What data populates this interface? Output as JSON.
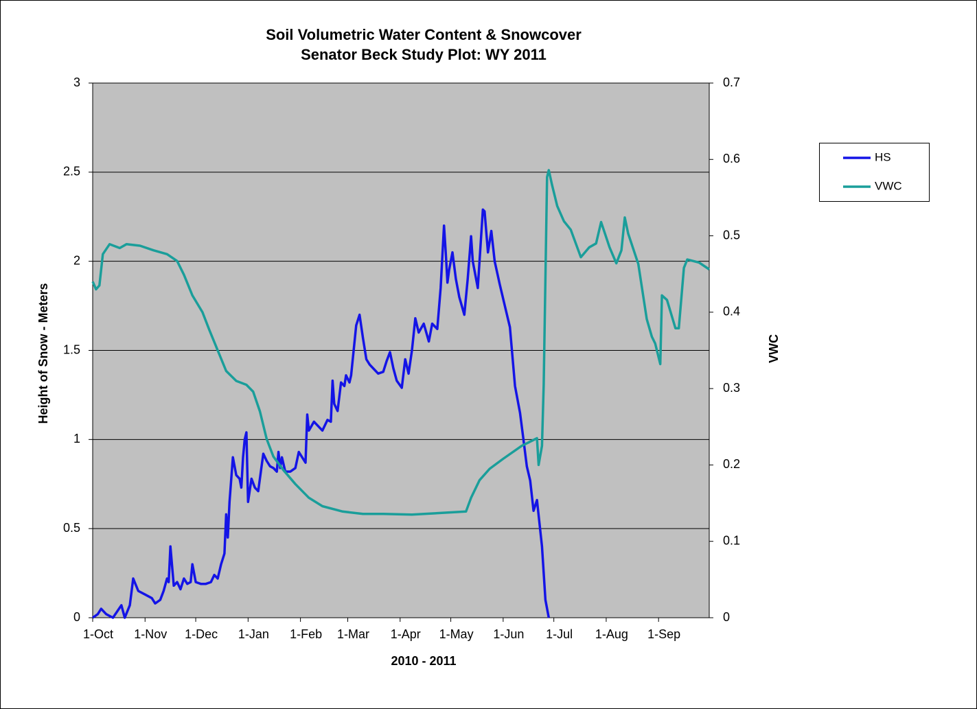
{
  "chart_data": {
    "type": "line",
    "title": "Soil Volumetric Water Content & Snowcover",
    "subtitle": "Senator Beck Study Plot: WY 2011",
    "x_label": "2010 - 2011",
    "y_label": "Height of Snow - Meters",
    "y2_label": "VWC",
    "xlim": [
      0,
      365
    ],
    "xticks": [
      {
        "value": 0,
        "label": "1-Oct"
      },
      {
        "value": 31,
        "label": "1-Nov"
      },
      {
        "value": 61,
        "label": "1-Dec"
      },
      {
        "value": 92,
        "label": "1-Jan"
      },
      {
        "value": 123,
        "label": "1-Feb"
      },
      {
        "value": 151,
        "label": "1-Mar"
      },
      {
        "value": 182,
        "label": "1-Apr"
      },
      {
        "value": 212,
        "label": "1-May"
      },
      {
        "value": 243,
        "label": "1-Jun"
      },
      {
        "value": 273,
        "label": "1-Jul"
      },
      {
        "value": 304,
        "label": "1-Aug"
      },
      {
        "value": 335,
        "label": "1-Sep"
      }
    ],
    "ylim": [
      0,
      3
    ],
    "yticks": [
      0,
      0.5,
      1,
      1.5,
      2,
      2.5,
      3
    ],
    "y2lim": [
      0,
      0.7
    ],
    "y2ticks": [
      0,
      0.1,
      0.2,
      0.3,
      0.4,
      0.5,
      0.6,
      0.7
    ],
    "grid": true,
    "legend": "right",
    "series": [
      {
        "name": "HS",
        "color": "#1414e6",
        "axis": "y",
        "x": [
          0,
          3,
          5,
          8,
          12,
          17,
          19,
          22,
          24,
          27,
          31,
          35,
          37,
          40,
          42,
          44,
          45,
          46,
          48,
          50,
          52,
          54,
          56,
          58,
          59,
          61,
          64,
          67,
          70,
          72,
          74,
          76,
          78,
          79,
          80,
          81,
          83,
          85,
          87,
          88,
          89,
          90,
          91,
          92,
          94,
          96,
          98,
          100,
          101,
          103,
          105,
          107,
          109,
          110,
          111,
          112,
          114,
          117,
          120,
          122,
          124,
          126,
          127,
          128,
          131,
          134,
          136,
          139,
          141,
          142,
          143,
          145,
          147,
          149,
          150,
          152,
          153,
          156,
          158,
          160,
          162,
          164,
          166,
          169,
          172,
          174,
          176,
          178,
          180,
          183,
          185,
          187,
          189,
          191,
          193,
          196,
          199,
          201,
          204,
          206,
          208,
          209,
          210,
          211,
          213,
          215,
          217,
          220,
          222,
          224,
          225,
          228,
          231,
          232,
          234,
          236,
          238,
          241,
          244,
          247,
          250,
          253,
          255,
          257,
          259,
          261,
          263,
          266,
          268,
          270
        ],
        "values": [
          0,
          0.02,
          0.05,
          0.02,
          0,
          0.07,
          0,
          0.07,
          0.22,
          0.15,
          0.13,
          0.11,
          0.08,
          0.1,
          0.15,
          0.22,
          0.2,
          0.4,
          0.18,
          0.2,
          0.16,
          0.22,
          0.19,
          0.2,
          0.3,
          0.2,
          0.19,
          0.19,
          0.2,
          0.24,
          0.22,
          0.3,
          0.36,
          0.58,
          0.45,
          0.65,
          0.9,
          0.8,
          0.78,
          0.73,
          0.9,
          1.0,
          1.04,
          0.65,
          0.78,
          0.73,
          0.71,
          0.85,
          0.92,
          0.88,
          0.85,
          0.84,
          0.82,
          0.93,
          0.84,
          0.9,
          0.82,
          0.82,
          0.84,
          0.93,
          0.9,
          0.87,
          1.14,
          1.05,
          1.1,
          1.07,
          1.05,
          1.11,
          1.1,
          1.33,
          1.2,
          1.16,
          1.32,
          1.3,
          1.36,
          1.32,
          1.36,
          1.64,
          1.7,
          1.57,
          1.45,
          1.42,
          1.4,
          1.37,
          1.38,
          1.44,
          1.49,
          1.4,
          1.33,
          1.29,
          1.45,
          1.37,
          1.5,
          1.68,
          1.6,
          1.65,
          1.55,
          1.65,
          1.62,
          1.85,
          2.2,
          2.05,
          1.88,
          1.95,
          2.05,
          1.9,
          1.8,
          1.7,
          1.9,
          2.14,
          2.0,
          1.85,
          2.29,
          2.28,
          2.05,
          2.17,
          2.0,
          1.87,
          1.75,
          1.63,
          1.3,
          1.15,
          1.0,
          0.85,
          0.77,
          0.6,
          0.66,
          0.4,
          0.1,
          0
        ]
      },
      {
        "name": "VWC",
        "color": "#1a9e9a",
        "axis": "y2",
        "x": [
          0,
          2,
          4,
          6,
          10,
          16,
          20,
          28,
          36,
          44,
          50,
          54,
          59,
          65,
          69,
          74,
          79,
          85,
          91,
          95,
          99,
          103,
          107,
          113,
          120,
          128,
          136,
          148,
          160,
          172,
          189,
          205,
          221,
          224,
          229,
          235,
          243,
          254,
          263,
          264,
          266,
          267,
          269,
          270,
          272,
          275,
          279,
          283,
          289,
          294,
          298,
          301,
          306,
          310,
          313,
          315,
          317,
          323,
          328,
          331,
          333,
          336,
          337,
          340,
          345,
          347,
          350,
          352,
          359,
          365
        ],
        "values": [
          0.44,
          0.43,
          0.435,
          0.476,
          0.489,
          0.484,
          0.489,
          0.487,
          0.481,
          0.476,
          0.467,
          0.449,
          0.422,
          0.4,
          0.377,
          0.35,
          0.323,
          0.31,
          0.305,
          0.296,
          0.27,
          0.234,
          0.211,
          0.193,
          0.175,
          0.157,
          0.146,
          0.139,
          0.136,
          0.136,
          0.135,
          0.137,
          0.139,
          0.157,
          0.18,
          0.195,
          0.208,
          0.225,
          0.235,
          0.2,
          0.225,
          0.305,
          0.577,
          0.586,
          0.566,
          0.539,
          0.519,
          0.508,
          0.472,
          0.485,
          0.49,
          0.518,
          0.485,
          0.464,
          0.481,
          0.524,
          0.503,
          0.463,
          0.391,
          0.368,
          0.359,
          0.332,
          0.422,
          0.416,
          0.379,
          0.379,
          0.458,
          0.469,
          0.465,
          0.456
        ]
      }
    ]
  }
}
